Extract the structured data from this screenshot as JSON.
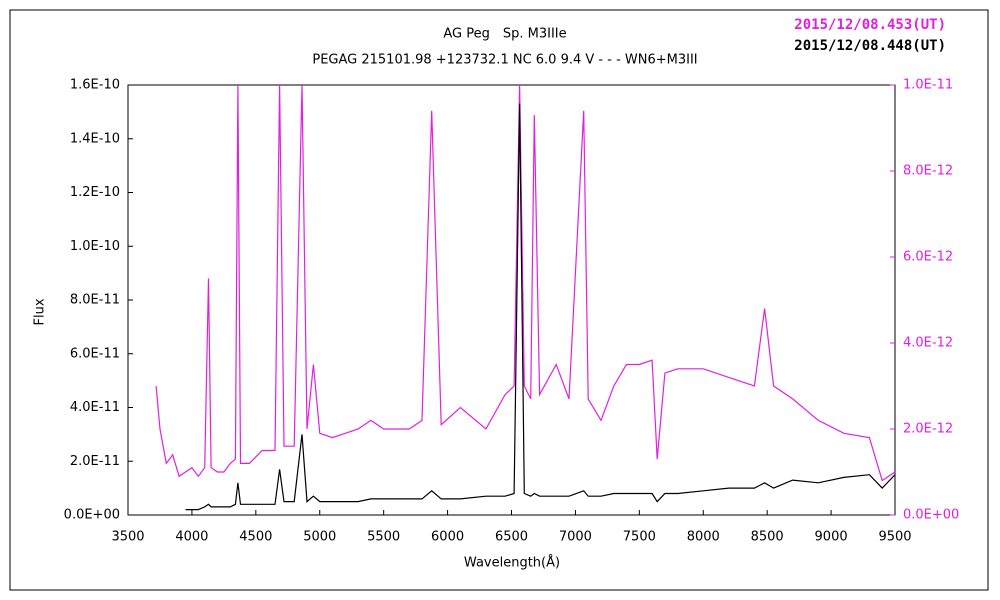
{
  "chart_data": {
    "type": "line",
    "title": "AG Peg　Sp. M3IIIe",
    "subtitle": "PEGAG 215101.98 +123732.1 NC 6.0 9.4 V - - - WN6+M3III",
    "x_label": "Wavelength(Å)",
    "y_label": "Flux",
    "legend": "upper right",
    "x": [
      3720,
      3750,
      3800,
      3850,
      3900,
      3950,
      4000,
      4050,
      4100,
      4130,
      4150,
      4200,
      4250,
      4300,
      4340,
      4360,
      4380,
      4450,
      4550,
      4650,
      4686,
      4720,
      4800,
      4861,
      4900,
      4950,
      5000,
      5100,
      5200,
      5300,
      5400,
      5500,
      5600,
      5700,
      5800,
      5876,
      5950,
      6100,
      6300,
      6450,
      6520,
      6563,
      6600,
      6650,
      6678,
      6720,
      6850,
      6950,
      7065,
      7100,
      7200,
      7300,
      7400,
      7500,
      7600,
      7640,
      7700,
      7800,
      8000,
      8200,
      8400,
      8480,
      8550,
      8700,
      8900,
      9100,
      9300,
      9400,
      9500
    ],
    "series": [
      {
        "name": "2015/12/08.453(UT)",
        "color": "#e020e0",
        "axis": "y2",
        "values": [
          3e-12,
          2e-12,
          1.2e-12,
          1.4e-12,
          9e-13,
          1e-12,
          1.1e-12,
          9e-13,
          1.1e-12,
          5.5e-12,
          1.1e-12,
          1e-12,
          1e-12,
          1.2e-12,
          1.3e-12,
          1e-11,
          1.2e-12,
          1.2e-12,
          1.5e-12,
          1.5e-12,
          1e-11,
          1.6e-12,
          1.6e-12,
          1e-11,
          2e-12,
          3.5e-12,
          1.9e-12,
          1.8e-12,
          1.9e-12,
          2e-12,
          2.2e-12,
          2e-12,
          2e-12,
          2e-12,
          2.2e-12,
          9.4e-12,
          2.1e-12,
          2.5e-12,
          2e-12,
          2.8e-12,
          3e-12,
          1e-11,
          3e-12,
          2.7e-12,
          9.3e-12,
          2.8e-12,
          3.5e-12,
          2.7e-12,
          9.4e-12,
          2.7e-12,
          2.2e-12,
          3e-12,
          3.5e-12,
          3.5e-12,
          3.6e-12,
          1.3e-12,
          3.3e-12,
          3.4e-12,
          3.4e-12,
          3.2e-12,
          3e-12,
          4.8e-12,
          3e-12,
          2.7e-12,
          2.2e-12,
          1.9e-12,
          1.8e-12,
          8e-13,
          1e-12
        ]
      },
      {
        "name": "2015/12/08.448(UT)",
        "color": "#000000",
        "axis": "y",
        "values": [
          null,
          null,
          null,
          null,
          null,
          2e-12,
          2e-12,
          2e-12,
          3e-12,
          4e-12,
          3e-12,
          3e-12,
          3e-12,
          3e-12,
          4e-12,
          1.2e-11,
          4e-12,
          4e-12,
          4e-12,
          4e-12,
          1.7e-11,
          5e-12,
          5e-12,
          3e-11,
          5e-12,
          7e-12,
          5e-12,
          5e-12,
          5e-12,
          5e-12,
          6e-12,
          6e-12,
          6e-12,
          6e-12,
          6e-12,
          9e-12,
          6e-12,
          6e-12,
          7e-12,
          7e-12,
          8e-12,
          1.53e-10,
          8e-12,
          7e-12,
          8e-12,
          7e-12,
          7e-12,
          7e-12,
          9e-12,
          7e-12,
          7e-12,
          8e-12,
          8e-12,
          8e-12,
          8e-12,
          5e-12,
          8e-12,
          8e-12,
          9e-12,
          1e-11,
          1e-11,
          1.2e-11,
          1e-11,
          1.3e-11,
          1.2e-11,
          1.4e-11,
          1.5e-11,
          1e-11,
          1.5e-11
        ]
      }
    ],
    "xlim": [
      3500,
      9500
    ],
    "xticks": [
      3500,
      4000,
      4500,
      5000,
      5500,
      6000,
      6500,
      7000,
      7500,
      8000,
      8500,
      9000,
      9500
    ],
    "ylim": [
      0,
      1.6e-10
    ],
    "yticks": [
      {
        "value": 0,
        "label": "0.0E+00"
      },
      {
        "value": 2e-11,
        "label": "2.0E-11"
      },
      {
        "value": 4e-11,
        "label": "4.0E-11"
      },
      {
        "value": 6e-11,
        "label": "6.0E-11"
      },
      {
        "value": 8e-11,
        "label": "8.0E-11"
      },
      {
        "value": 1e-10,
        "label": "1.0E-10"
      },
      {
        "value": 1.2e-10,
        "label": "1.2E-10"
      },
      {
        "value": 1.4e-10,
        "label": "1.4E-10"
      },
      {
        "value": 1.6e-10,
        "label": "1.6E-10"
      }
    ],
    "y2lim": [
      0,
      1e-11
    ],
    "y2ticks": [
      {
        "value": 0,
        "label": "0.0E+00"
      },
      {
        "value": 2e-12,
        "label": "2.0E-12"
      },
      {
        "value": 4e-12,
        "label": "4.0E-12"
      },
      {
        "value": 6e-12,
        "label": "6.0E-12"
      },
      {
        "value": 8e-12,
        "label": "8.0E-12"
      },
      {
        "value": 1e-11,
        "label": "1.0E-11"
      }
    ]
  }
}
